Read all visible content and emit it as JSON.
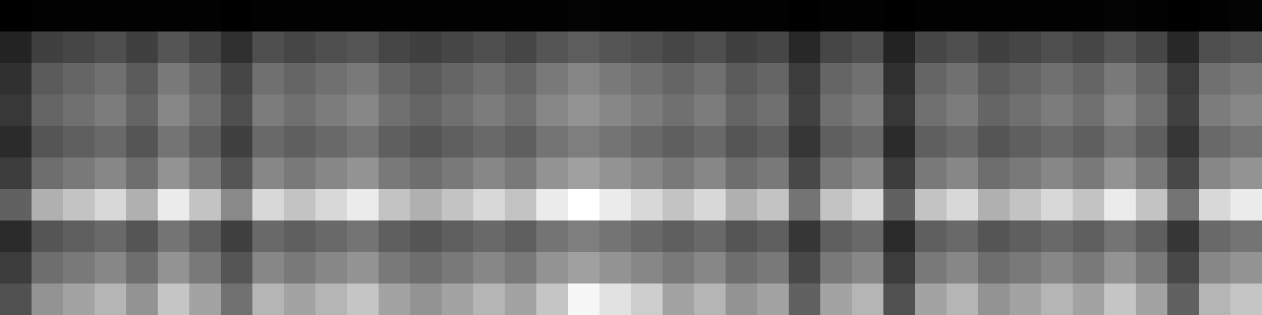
{
  "chart_data": {
    "type": "heatmap",
    "color": "gray",
    "tick_labels": false,
    "cells": [
      [
        1,
        2,
        2,
        2,
        2,
        2,
        2,
        1,
        2,
        2,
        2,
        2,
        2,
        2,
        2,
        2,
        2,
        2,
        3,
        2,
        2,
        2,
        2,
        2,
        2,
        1,
        2,
        2,
        1,
        2,
        2,
        2,
        2,
        2,
        2,
        3,
        2,
        1,
        2,
        3
      ],
      [
        18,
        32,
        35,
        39,
        32,
        42,
        35,
        25,
        39,
        35,
        39,
        42,
        35,
        32,
        35,
        39,
        35,
        42,
        46,
        42,
        39,
        35,
        39,
        32,
        35,
        21,
        35,
        39,
        18,
        35,
        39,
        32,
        35,
        39,
        35,
        42,
        35,
        21,
        39,
        42
      ],
      [
        25,
        45,
        50,
        55,
        45,
        60,
        50,
        35,
        55,
        50,
        55,
        60,
        50,
        45,
        50,
        55,
        50,
        60,
        65,
        60,
        55,
        50,
        55,
        45,
        50,
        30,
        50,
        55,
        25,
        50,
        55,
        45,
        50,
        55,
        50,
        60,
        50,
        30,
        55,
        60
      ],
      [
        28,
        50,
        55,
        61,
        50,
        66,
        55,
        39,
        61,
        55,
        61,
        66,
        55,
        50,
        55,
        61,
        55,
        66,
        72,
        66,
        61,
        55,
        61,
        50,
        55,
        33,
        55,
        61,
        28,
        55,
        61,
        50,
        55,
        61,
        55,
        66,
        55,
        33,
        61,
        66
      ],
      [
        22,
        42,
        47,
        52,
        42,
        57,
        47,
        32,
        52,
        47,
        52,
        57,
        47,
        42,
        47,
        52,
        47,
        57,
        62,
        57,
        52,
        47,
        52,
        42,
        47,
        27,
        47,
        52,
        22,
        47,
        52,
        42,
        47,
        52,
        47,
        57,
        47,
        27,
        52,
        57
      ],
      [
        30,
        54,
        60,
        66,
        54,
        72,
        60,
        42,
        66,
        60,
        66,
        72,
        60,
        54,
        60,
        66,
        60,
        72,
        78,
        72,
        66,
        60,
        66,
        54,
        60,
        36,
        60,
        66,
        30,
        60,
        66,
        54,
        60,
        66,
        60,
        72,
        60,
        36,
        66,
        72
      ],
      [
        48,
        86,
        95,
        105,
        86,
        114,
        95,
        67,
        105,
        95,
        105,
        114,
        95,
        86,
        95,
        105,
        95,
        114,
        124,
        114,
        105,
        95,
        105,
        86,
        95,
        57,
        95,
        105,
        48,
        95,
        105,
        86,
        95,
        105,
        95,
        114,
        95,
        57,
        105,
        114
      ],
      [
        22,
        42,
        47,
        52,
        42,
        57,
        47,
        32,
        52,
        47,
        52,
        57,
        47,
        42,
        47,
        52,
        47,
        57,
        62,
        57,
        52,
        47,
        52,
        42,
        47,
        27,
        47,
        52,
        22,
        47,
        52,
        42,
        47,
        52,
        47,
        57,
        47,
        27,
        52,
        57
      ],
      [
        30,
        54,
        60,
        66,
        54,
        72,
        60,
        42,
        66,
        60,
        66,
        72,
        60,
        54,
        60,
        66,
        60,
        72,
        78,
        72,
        66,
        60,
        66,
        54,
        60,
        36,
        60,
        66,
        30,
        60,
        66,
        54,
        60,
        66,
        60,
        72,
        60,
        36,
        66,
        72
      ],
      [
        40,
        72,
        80,
        88,
        72,
        96,
        80,
        56,
        88,
        80,
        88,
        96,
        80,
        72,
        80,
        88,
        80,
        96,
        120,
        110,
        100,
        80,
        88,
        72,
        80,
        48,
        80,
        88,
        40,
        80,
        88,
        72,
        80,
        88,
        80,
        96,
        80,
        48,
        88,
        96
      ]
    ]
  }
}
